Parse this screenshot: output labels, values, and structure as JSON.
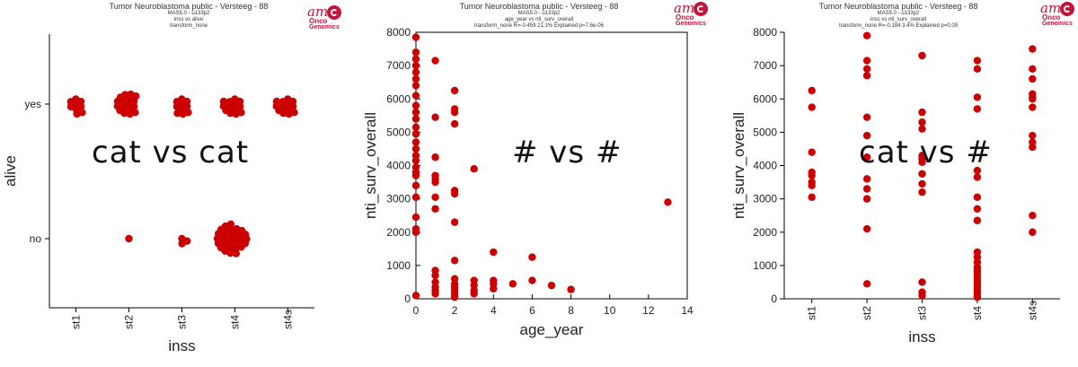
{
  "panels": [
    {
      "title": "Tumor Neuroblastoma public - Versteeg - 88",
      "subtitles": [
        "MAS5.0 - u133p2",
        "inss vs alive",
        "transform_none"
      ],
      "overlay": "cat vs cat",
      "logo": {
        "top": "am",
        "mid": "Onco",
        "bottom": "Genomics"
      }
    },
    {
      "title": "Tumor Neuroblastoma public - Versteeg - 88",
      "subtitles": [
        "MAS5.0 - u133p2",
        "age_year vs nti_surv_overall",
        "transform_none R=-0.459 21.1% Explained p=7.6e-06"
      ],
      "overlay": "# vs #",
      "logo": {
        "top": "am",
        "mid": "Onco",
        "bottom": "Genomics"
      }
    },
    {
      "title": "Tumor Neuroblastoma public - Versteeg - 88",
      "subtitles": [
        "MAS5.0 - u133p2",
        "inss vs nti_surv_overall",
        "transform_none R=-0.184 3.4% Explained p=0.09"
      ],
      "overlay": "cat vs #",
      "logo": {
        "top": "am",
        "mid": "Onco",
        "bottom": "Genomics"
      }
    }
  ],
  "chart_data": [
    {
      "type": "scatter",
      "subtype": "categorical beeswarm",
      "xlabel": "inss",
      "ylabel": "alive",
      "categories": [
        "st1",
        "st2",
        "st3",
        "st4",
        "st4s"
      ],
      "y_categories": [
        "no",
        "yes"
      ],
      "counts": {
        "st1": {
          "yes": 9,
          "no": 0
        },
        "st2": {
          "yes": 17,
          "no": 1
        },
        "st3": {
          "yes": 10,
          "no": 3
        },
        "st4": {
          "yes": 13,
          "no": 30
        },
        "st4s": {
          "yes": 13,
          "no": 0
        }
      },
      "marker_color": "#cc0000"
    },
    {
      "type": "scatter",
      "xlabel": "age_year",
      "ylabel": "nti_surv_overall",
      "xlim": [
        0,
        14
      ],
      "ylim": [
        0,
        8000
      ],
      "xticks": [
        0,
        2,
        4,
        6,
        8,
        10,
        12,
        14
      ],
      "yticks": [
        0,
        1000,
        2000,
        3000,
        4000,
        5000,
        6000,
        7000,
        8000
      ],
      "points": [
        [
          0,
          7850
        ],
        [
          0,
          7400
        ],
        [
          0,
          7200
        ],
        [
          0,
          7000
        ],
        [
          0,
          6800
        ],
        [
          0,
          6600
        ],
        [
          0,
          6400
        ],
        [
          0,
          6100
        ],
        [
          0,
          5800
        ],
        [
          0,
          5600
        ],
        [
          0,
          5400
        ],
        [
          0,
          5150
        ],
        [
          0,
          4950
        ],
        [
          0,
          4700
        ],
        [
          0,
          4500
        ],
        [
          0,
          4300
        ],
        [
          0,
          4150
        ],
        [
          0,
          3950
        ],
        [
          0,
          3800
        ],
        [
          0,
          3700
        ],
        [
          0,
          3400
        ],
        [
          0,
          3050
        ],
        [
          0,
          2450
        ],
        [
          0,
          2100
        ],
        [
          0,
          2000
        ],
        [
          0,
          100
        ],
        [
          1,
          7150
        ],
        [
          1,
          5450
        ],
        [
          1,
          4250
        ],
        [
          1,
          3700
        ],
        [
          1,
          3600
        ],
        [
          1,
          3500
        ],
        [
          1,
          3050
        ],
        [
          1,
          2700
        ],
        [
          1,
          850
        ],
        [
          1,
          700
        ],
        [
          1,
          500
        ],
        [
          1,
          350
        ],
        [
          1,
          250
        ],
        [
          1,
          150
        ],
        [
          2,
          6250
        ],
        [
          2,
          5700
        ],
        [
          2,
          5600
        ],
        [
          2,
          5250
        ],
        [
          2,
          3250
        ],
        [
          2,
          3150
        ],
        [
          2,
          2300
        ],
        [
          2,
          1150
        ],
        [
          2,
          600
        ],
        [
          2,
          450
        ],
        [
          2,
          350
        ],
        [
          2,
          250
        ],
        [
          2,
          150
        ],
        [
          2,
          50
        ],
        [
          3,
          3900
        ],
        [
          3,
          550
        ],
        [
          3,
          400
        ],
        [
          3,
          250
        ],
        [
          3,
          150
        ],
        [
          4,
          1400
        ],
        [
          4,
          550
        ],
        [
          4,
          450
        ],
        [
          4,
          300
        ],
        [
          5,
          450
        ],
        [
          6,
          1250
        ],
        [
          6,
          550
        ],
        [
          7,
          400
        ],
        [
          8,
          280
        ],
        [
          13,
          2900
        ]
      ],
      "marker_color": "#cc0000"
    },
    {
      "type": "scatter",
      "subtype": "categorical strip",
      "xlabel": "inss",
      "ylabel": "nti_surv_overall",
      "categories": [
        "st1",
        "st2",
        "st3",
        "st4",
        "st4s"
      ],
      "ylim": [
        0,
        8000
      ],
      "yticks": [
        0,
        1000,
        2000,
        3000,
        4000,
        5000,
        6000,
        7000,
        8000
      ],
      "values": {
        "st1": [
          6250,
          5750,
          4400,
          3800,
          3700,
          3500,
          3400,
          3050
        ],
        "st2": [
          7900,
          7150,
          6900,
          6700,
          5450,
          4900,
          4250,
          3600,
          3300,
          3000,
          2100,
          450
        ],
        "st3": [
          7300,
          5600,
          5300,
          5100,
          4300,
          4200,
          4100,
          3750,
          3450,
          3200,
          500,
          200,
          100
        ],
        "st4": [
          7150,
          6900,
          6050,
          5700,
          3850,
          3650,
          3050,
          2700,
          2350,
          1400,
          1250,
          1100,
          950,
          850,
          750,
          650,
          550,
          450,
          350,
          250,
          150,
          50
        ],
        "st4s": [
          7500,
          6900,
          6600,
          6150,
          6050,
          6000,
          5750,
          4900,
          4700,
          4550,
          2500,
          2000
        ]
      },
      "marker_color": "#cc0000"
    }
  ]
}
